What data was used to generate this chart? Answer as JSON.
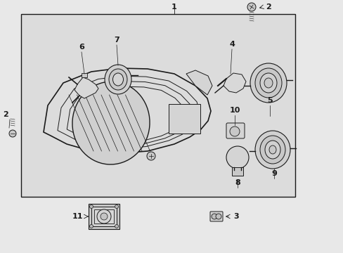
{
  "bg_color": "#e8e8e8",
  "panel_bg": "#dcdcdc",
  "lc": "#1a1a1a",
  "fig_w": 4.89,
  "fig_h": 3.6,
  "dpi": 100
}
